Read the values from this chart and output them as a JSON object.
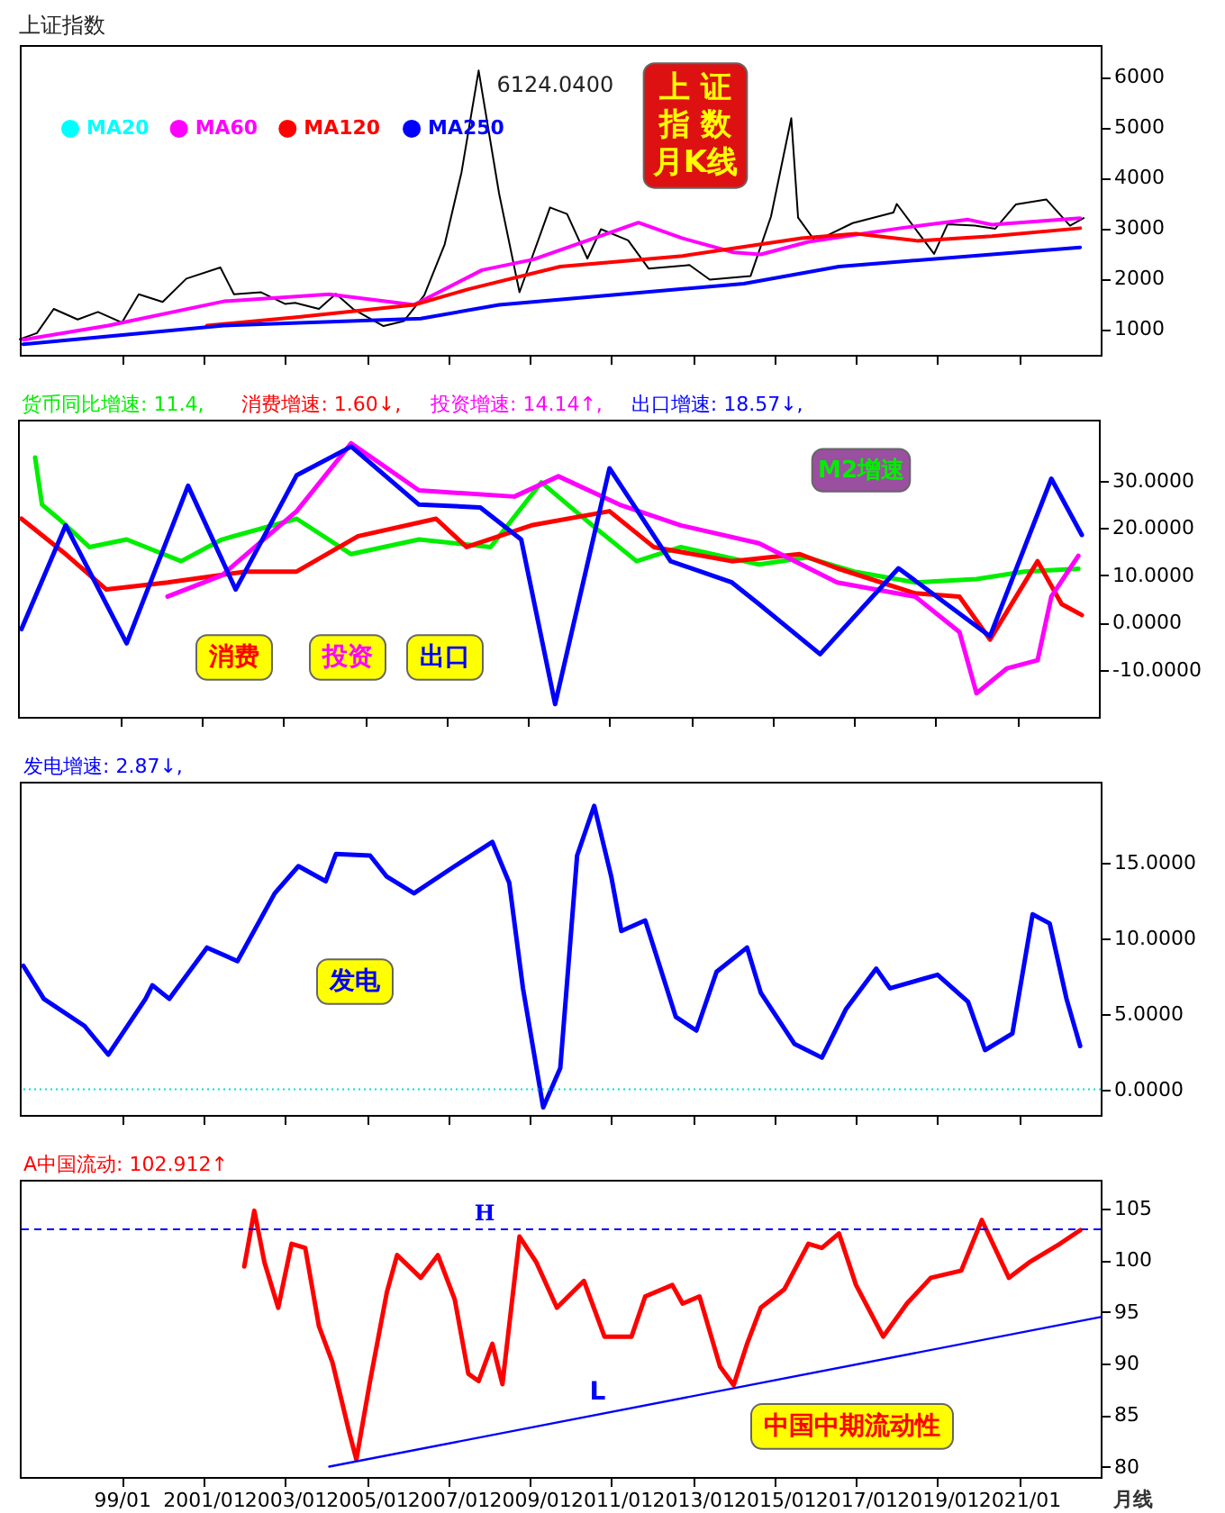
{
  "chart_data": [
    {
      "type": "line",
      "title": "上证指数",
      "xlim": [
        "1996-07",
        "2023-01"
      ],
      "ylim": [
        490,
        6630
      ],
      "tick_labels": "y",
      "legend": "top left",
      "xticks": [
        "1999-01",
        "2001-01",
        "2003-01",
        "2005-01",
        "2007-01",
        "2009-01",
        "2011-01",
        "2013-01",
        "2015-01",
        "2017-01",
        "2019-01",
        "2021-01"
      ],
      "yticks": [
        1000,
        2000,
        3000,
        4000,
        5000,
        6000
      ],
      "series": [
        {
          "color": "#000000",
          "x": [
            "1996-07",
            "1996-12",
            "1997-05",
            "1997-12",
            "1998-06",
            "1999-01",
            "1999-06",
            "2000-01",
            "2000-08",
            "2001-06",
            "2001-10",
            "2002-06",
            "2003-01",
            "2003-04",
            "2003-11",
            "2004-04",
            "2004-09",
            "2005-06",
            "2005-12",
            "2006-06",
            "2006-12",
            "2007-05",
            "2007-10",
            "2008-04",
            "2008-10",
            "2009-07",
            "2009-12",
            "2010-06",
            "2010-10",
            "2011-06",
            "2011-12",
            "2012-12",
            "2013-06",
            "2014-06",
            "2014-12",
            "2015-06",
            "2015-08",
            "2016-01",
            "2016-12",
            "2017-12",
            "2018-01",
            "2018-12",
            "2019-04",
            "2019-12",
            "2020-06",
            "2020-12",
            "2021-09",
            "2022-04",
            "2022-08"
          ],
          "values": [
            800,
            920,
            1400,
            1190,
            1340,
            1130,
            1690,
            1540,
            2000,
            2220,
            1690,
            1730,
            1500,
            1520,
            1400,
            1700,
            1400,
            1060,
            1160,
            1670,
            2680,
            4110,
            6124,
            3690,
            1730,
            3410,
            3280,
            2400,
            2980,
            2760,
            2200,
            2270,
            1980,
            2050,
            3230,
            5180,
            3210,
            2740,
            3100,
            3310,
            3480,
            2490,
            3080,
            3050,
            2990,
            3470,
            3570,
            3050,
            3200
          ]
        },
        {
          "name": "MA20",
          "color": "#00ffff"
        },
        {
          "name": "MA60",
          "color": "#ff00ff",
          "x": [
            "1996-08",
            "1998-09",
            "2001-07",
            "2004-02",
            "2006-03",
            "2007-11",
            "2009-02",
            "2011-09",
            "2012-10",
            "2014-01",
            "2014-09",
            "2015-11",
            "2018-02",
            "2019-10",
            "2020-05",
            "2022-07"
          ],
          "values": [
            790,
            1070,
            1550,
            1690,
            1480,
            2170,
            2380,
            3110,
            2800,
            2520,
            2480,
            2730,
            3000,
            3170,
            3070,
            3200
          ]
        },
        {
          "name": "MA120",
          "color": "#ff0000",
          "x": [
            "2001-02",
            "2003-05",
            "2006-03",
            "2007-07",
            "2009-10",
            "2012-10",
            "2015-09",
            "2017-01",
            "2018-07",
            "2020-05",
            "2022-07"
          ],
          "values": [
            1070,
            1240,
            1480,
            1790,
            2240,
            2450,
            2800,
            2890,
            2750,
            2840,
            3000
          ]
        },
        {
          "name": "MA250",
          "color": "#0000ff",
          "x": [
            "1996-08",
            "2001-07",
            "2006-05",
            "2008-04",
            "2014-04",
            "2016-08",
            "2022-07"
          ],
          "values": [
            700,
            1070,
            1210,
            1480,
            1900,
            2240,
            2620
          ]
        }
      ],
      "annotations": [
        {
          "text": "6124.0400",
          "x": "2007-10",
          "y": 6124
        },
        "上 证",
        "指 数",
        "月K线"
      ]
    },
    {
      "type": "line",
      "xlim": [
        "1996-07",
        "2023-01"
      ],
      "ylim": [
        -20,
        43
      ],
      "tick_labels": "y",
      "xticks": [
        "1999-01",
        "2001-01",
        "2003-01",
        "2005-01",
        "2007-01",
        "2009-01",
        "2011-01",
        "2013-01",
        "2015-01",
        "2017-01",
        "2019-01",
        "2021-01"
      ],
      "yticks": [
        {
          "value": -10,
          "label": "-10.0000"
        },
        {
          "value": 0,
          "label": "0.0000"
        },
        {
          "value": 10,
          "label": "10.0000"
        },
        {
          "value": 20,
          "label": "20.0000"
        },
        {
          "value": 30,
          "label": "30.0000"
        }
      ],
      "series": [
        {
          "name": "货币同比增速: 11.4,",
          "color": "#00ee00",
          "x": [
            "1996-12",
            "1997-02",
            "1997-07",
            "1998-04",
            "1999-03",
            "2000-07",
            "2001-07",
            "2003-05",
            "2004-09",
            "2006-05",
            "2008-02",
            "2009-05",
            "2010-08",
            "2011-09",
            "2012-10",
            "2014-09",
            "2015-11",
            "2017-01",
            "2018-07",
            "2020-01",
            "2021-03",
            "2022-07"
          ],
          "values": [
            35,
            25,
            22,
            16,
            17.6,
            13,
            17.6,
            22,
            14.5,
            17.6,
            16,
            29.7,
            20.6,
            13,
            16,
            12.3,
            13.8,
            10.8,
            8.5,
            9.2,
            10.8,
            11.4
          ]
        },
        {
          "name": "消费增速: 1.60↓,",
          "color": "#ff0000",
          "x": [
            "1996-08",
            "1997-09",
            "1998-09",
            "2000-03",
            "2002-02",
            "2003-05",
            "2004-11",
            "2006-10",
            "2007-07",
            "2009-02",
            "2011-01",
            "2012-02",
            "2014-01",
            "2015-09",
            "2016-08",
            "2018-07",
            "2019-08",
            "2020-05",
            "2021-07",
            "2022-02",
            "2022-08"
          ],
          "values": [
            22,
            14.5,
            7,
            8.5,
            10.8,
            10.8,
            18.3,
            22,
            16,
            20.6,
            23.6,
            16,
            13,
            14.5,
            11.5,
            6.2,
            5.5,
            -3.6,
            13,
            3.9,
            1.6
          ]
        },
        {
          "name": "投资增速: 14.14↑,",
          "color": "#ff00ff",
          "x": [
            "2000-03",
            "2001-07",
            "2003-05",
            "2004-09",
            "2006-05",
            "2008-09",
            "2009-10",
            "2011-04",
            "2012-10",
            "2014-09",
            "2016-08",
            "2018-07",
            "2019-08",
            "2020-01",
            "2020-10",
            "2021-07",
            "2021-11",
            "2022-07"
          ],
          "values": [
            5.5,
            10,
            23.6,
            38,
            28,
            26.7,
            31,
            25,
            20.6,
            16.8,
            8.5,
            5.5,
            -2,
            -15,
            -9.7,
            -8,
            5.5,
            14.14
          ]
        },
        {
          "name": "出口增速: 18.57↓,",
          "color": "#0000ff",
          "x": [
            "1996-08",
            "1997-09",
            "1999-03",
            "2000-09",
            "2001-11",
            "2003-05",
            "2004-09",
            "2006-05",
            "2007-11",
            "2008-11",
            "2009-09",
            "2011-01",
            "2012-07",
            "2014-01",
            "2014-09",
            "2016-03",
            "2018-02",
            "2020-05",
            "2021-11",
            "2022-08"
          ],
          "values": [
            -1.4,
            20.6,
            -4.4,
            29,
            7,
            31.2,
            37.3,
            25,
            24.4,
            17.6,
            -17.3,
            32.7,
            13,
            8.5,
            3.9,
            -6.7,
            11.5,
            -2.9,
            30.5,
            18.57
          ]
        }
      ],
      "annotations": [
        "消费",
        "投资",
        "出口",
        "M2增速"
      ]
    },
    {
      "type": "line",
      "xlim": [
        "1996-07",
        "2023-01"
      ],
      "ylim": [
        -1.7,
        20.4
      ],
      "tick_labels": "y",
      "xticks": [
        "1999-01",
        "2001-01",
        "2003-01",
        "2005-01",
        "2007-01",
        "2009-01",
        "2011-01",
        "2013-01",
        "2015-01",
        "2017-01",
        "2019-01",
        "2021-01"
      ],
      "yticks": [
        {
          "value": 0,
          "label": "0.0000"
        },
        {
          "value": 5,
          "label": "5.0000"
        },
        {
          "value": 10,
          "label": "10.0000"
        },
        {
          "value": 15,
          "label": "15.0000"
        }
      ],
      "series": [
        {
          "name": "发电增速: 2.87↓,",
          "color": "#0000ff",
          "x": [
            "1996-08",
            "1997-02",
            "1998-02",
            "1998-09",
            "1999-08",
            "1999-10",
            "2000-03",
            "2001-02",
            "2001-11",
            "2002-10",
            "2003-05",
            "2004-01",
            "2004-04",
            "2005-02",
            "2005-07",
            "2006-03",
            "2007-03",
            "2008-02",
            "2008-07",
            "2008-11",
            "2009-05",
            "2009-10",
            "2010-03",
            "2010-08",
            "2011-01",
            "2011-04",
            "2011-11",
            "2012-08",
            "2013-02",
            "2013-08",
            "2014-05",
            "2014-09",
            "2015-07",
            "2016-03",
            "2016-10",
            "2017-07",
            "2017-11",
            "2019-01",
            "2019-10",
            "2020-03",
            "2020-11",
            "2021-05",
            "2021-10",
            "2022-03",
            "2022-07"
          ],
          "values": [
            8.2,
            6.0,
            4.2,
            2.3,
            6.0,
            6.9,
            6.0,
            9.4,
            8.5,
            13.0,
            14.8,
            13.8,
            15.6,
            15.5,
            14.1,
            13.0,
            14.8,
            16.4,
            13.7,
            6.7,
            -1.2,
            1.4,
            15.5,
            18.8,
            14.1,
            10.5,
            11.2,
            4.8,
            3.9,
            7.8,
            9.4,
            6.4,
            3.0,
            2.1,
            5.3,
            8.0,
            6.7,
            7.6,
            5.8,
            2.6,
            3.7,
            11.6,
            11.0,
            6.0,
            2.87
          ]
        }
      ],
      "ref_lines": [
        {
          "axis": "y",
          "value": 0,
          "color": "#00e0e0",
          "line_style": "dotted"
        }
      ],
      "annotations": [
        "发电"
      ]
    },
    {
      "type": "line",
      "xlim": [
        "1996-07",
        "2023-01"
      ],
      "ylim": [
        79,
        107.8
      ],
      "xticks": [
        {
          "value": "1999-01",
          "label": "99/01"
        },
        {
          "value": "2001-01",
          "label": "2001/01"
        },
        {
          "value": "2003-01",
          "label": "2003/01"
        },
        {
          "value": "2005-01",
          "label": "2005/01"
        },
        {
          "value": "2007-01",
          "label": "2007/01"
        },
        {
          "value": "2009-01",
          "label": "2009/01"
        },
        {
          "value": "2011-01",
          "label": "2011/01"
        },
        {
          "value": "2013-01",
          "label": "2013/01"
        },
        {
          "value": "2015-01",
          "label": "2015/01"
        },
        {
          "value": "2017-01",
          "label": "2017/01"
        },
        {
          "value": "2019-01",
          "label": "2019/01"
        },
        {
          "value": "2021-01",
          "label": "2021/01"
        }
      ],
      "yticks": [
        80,
        85,
        90,
        95,
        100,
        105
      ],
      "series": [
        {
          "name": "A中国流动: 102.912↑",
          "color": "#ff0000",
          "x": [
            "2002-01",
            "2002-04",
            "2002-07",
            "2002-11",
            "2003-03",
            "2003-07",
            "2003-11",
            "2004-03",
            "2004-08",
            "2004-10",
            "2005-02",
            "2005-07",
            "2005-10",
            "2006-05",
            "2006-10",
            "2007-03",
            "2007-07",
            "2007-10",
            "2008-02",
            "2008-05",
            "2008-10",
            "2009-03",
            "2009-09",
            "2010-05",
            "2010-11",
            "2011-07",
            "2011-11",
            "2012-07",
            "2012-10",
            "2013-03",
            "2013-09",
            "2014-01",
            "2014-05",
            "2014-09",
            "2015-04",
            "2015-11",
            "2016-03",
            "2016-08",
            "2017-01",
            "2017-09",
            "2018-04",
            "2018-11",
            "2019-08",
            "2020-02",
            "2020-10",
            "2021-04",
            "2022-01",
            "2022-07"
          ],
          "values": [
            99.4,
            104.8,
            99.8,
            95.4,
            101.6,
            101.2,
            93.6,
            90.1,
            83.2,
            80.7,
            88.3,
            96.9,
            100.5,
            98.3,
            100.5,
            96.2,
            89.0,
            88.3,
            91.9,
            88.0,
            102.3,
            99.8,
            95.4,
            98.0,
            92.6,
            92.6,
            96.5,
            97.6,
            95.8,
            96.5,
            89.7,
            87.9,
            91.9,
            95.4,
            97.2,
            101.6,
            101.2,
            102.6,
            97.6,
            92.6,
            95.8,
            98.3,
            99.0,
            103.9,
            98.3,
            99.8,
            101.6,
            102.912
          ]
        },
        {
          "type": "line",
          "color": "#0000ff",
          "x": [
            "2004-02",
            "2023-01"
          ],
          "values": [
            80.0,
            94.5
          ]
        }
      ],
      "ref_lines": [
        {
          "axis": "y",
          "value": 103,
          "label": "H",
          "color": "#0000ff",
          "line_style": "dashed"
        }
      ],
      "annotations": [
        {
          "text": "L",
          "x": "2010-09",
          "y": 85.1
        },
        "中国中期流动性",
        "月线"
      ]
    }
  ]
}
